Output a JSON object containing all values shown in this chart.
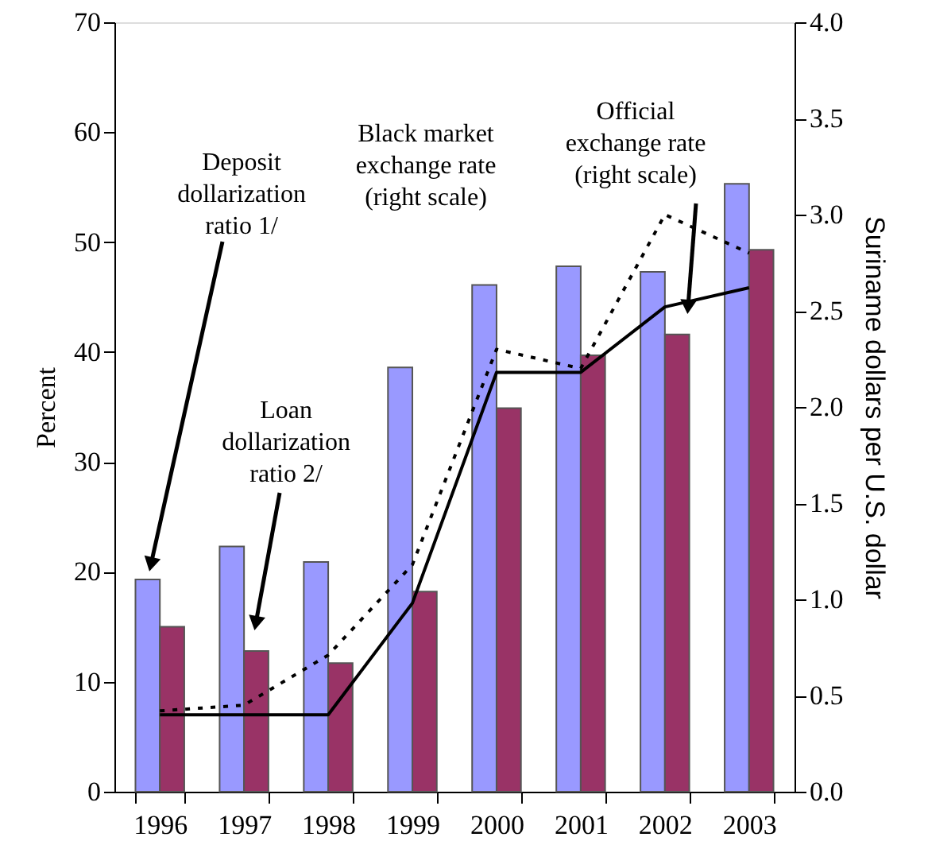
{
  "chart_data": {
    "type": "bar",
    "categories": [
      "1996",
      "1997",
      "1998",
      "1999",
      "2000",
      "2001",
      "2002",
      "2003"
    ],
    "series": [
      {
        "color": "#9999ff",
        "values": [
          19.3,
          22.3,
          20.9,
          38.6,
          46.1,
          47.8,
          47.3,
          55.3
        ]
      },
      {
        "color": "#993366",
        "values": [
          15.0,
          12.8,
          11.7,
          18.2,
          34.9,
          39.7,
          41.6,
          49.3
        ]
      },
      {
        "type": "line",
        "axis": "y2",
        "color": "#000000",
        "line_style": "dotted",
        "values": [
          0.42,
          0.45,
          0.71,
          1.18,
          2.3,
          2.2,
          3.0,
          2.8
        ]
      },
      {
        "type": "line",
        "axis": "y2",
        "color": "#000000",
        "line_style": "solid",
        "values": [
          0.4,
          0.4,
          0.4,
          0.98,
          2.18,
          2.18,
          2.52,
          2.62
        ]
      }
    ],
    "ylabel": "Percent",
    "y2label": "Suriname dollars per U.S. dollar",
    "ylim": [
      0,
      70
    ],
    "yticks": [
      0,
      10,
      20,
      30,
      40,
      50,
      60,
      70
    ],
    "y2lim": [
      0,
      4
    ],
    "y2ticks": [
      {
        "value": 0,
        "label": "0.0"
      },
      0.5,
      {
        "value": 1,
        "label": "1.0"
      },
      1.5,
      {
        "value": 2,
        "label": "2.0"
      },
      2.5,
      {
        "value": 3,
        "label": "3.0"
      },
      3.5,
      {
        "value": 4,
        "label": "4.0"
      }
    ],
    "annotations": [
      "Deposit\ndollarization\nratio 1/",
      "Loan\ndollarization\nratio 2/",
      "Black market\nexchange rate\n(right scale)",
      "Official\nexchange rate\n(right scale)"
    ]
  }
}
